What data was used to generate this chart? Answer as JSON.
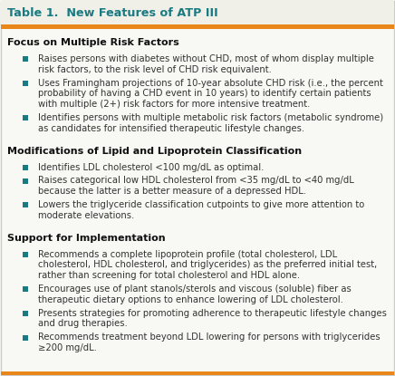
{
  "title": "Table 1.  New Features of ATP III",
  "title_color": "#1a7a82",
  "header_bar_color": "#e8861a",
  "background_color": "#f8f8f5",
  "border_color_top": "#e8861a",
  "border_color_outer": "#cccccc",
  "section_header_color": "#111111",
  "bullet_color": "#1a7a82",
  "text_color": "#333333",
  "title_bg_color": "#f0f0e8",
  "sections": [
    {
      "header": "Focus on Multiple Risk Factors",
      "bullets": [
        "Raises persons with diabetes without CHD, most of whom display multiple\nrisk factors, to the risk level of CHD risk equivalent.",
        "Uses Framingham projections of 10-year absolute CHD risk (i.e., the percent\nprobability of having a CHD event in 10 years) to identify certain patients\nwith multiple (2+) risk factors for more intensive treatment.",
        "Identifies persons with multiple metabolic risk factors (metabolic syndrome)\nas candidates for intensified therapeutic lifestyle changes."
      ]
    },
    {
      "header": "Modifications of Lipid and Lipoprotein Classification",
      "bullets": [
        "Identifies LDL cholesterol <100 mg/dL as optimal.",
        "Raises categorical low HDL cholesterol from <35 mg/dL to <40 mg/dL\nbecause the latter is a better measure of a depressed HDL.",
        "Lowers the triglyceride classification cutpoints to give more attention to\nmoderate elevations."
      ]
    },
    {
      "header": "Support for Implementation",
      "bullets": [
        "Recommends a complete lipoprotein profile (total cholesterol, LDL\ncholesterol, HDL cholesterol, and triglycerides) as the preferred initial test,\nrather than screening for total cholesterol and HDL alone.",
        "Encourages use of plant stanols/sterols and viscous (soluble) fiber as\ntherapeutic dietary options to enhance lowering of LDL cholesterol.",
        "Presents strategies for promoting adherence to therapeutic lifestyle changes\nand drug therapies.",
        "Recommends treatment beyond LDL lowering for persons with triglycerides\n≥200 mg/dL."
      ]
    }
  ],
  "figwidth": 4.36,
  "figheight": 4.15,
  "dpi": 100
}
